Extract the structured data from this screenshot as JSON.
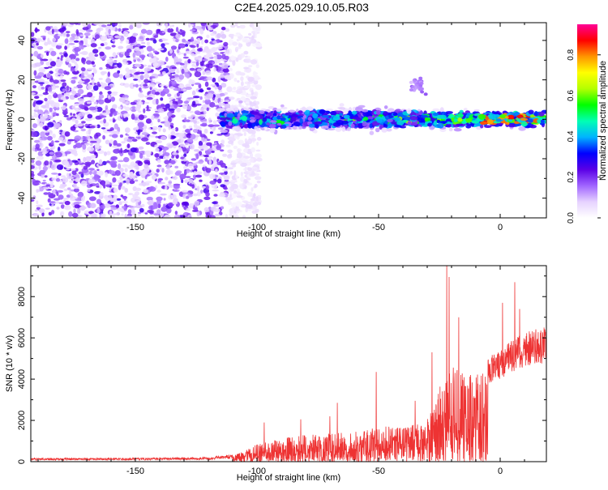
{
  "figure": {
    "title": "C2E4.2025.029.10.05.R03"
  },
  "chart_data": [
    {
      "type": "heatmap",
      "title": "C2E4.2025.029.10.05.R03",
      "xlabel": "Height of straight line (km)",
      "ylabel": "Frequency (Hz)",
      "xlim": [
        -193,
        19
      ],
      "ylim": [
        -50,
        49
      ],
      "xticks": [
        -150,
        -100,
        -50,
        0
      ],
      "yticks": [
        -40,
        -20,
        0,
        20,
        40
      ],
      "features": {
        "noise_region_x": [
          -193,
          -105
        ],
        "signal_band_x": [
          -115,
          19
        ],
        "signal_band_center_freq": 0,
        "signal_band_half_width_hz": 5,
        "secondary_blob": {
          "x": -34,
          "y": 18
        },
        "peak_amplitude_region_x": [
          -10,
          15
        ]
      },
      "colorbar": {
        "label": "Normalized spectral amplitude",
        "range": [
          0.0,
          0.95
        ],
        "ticks": [
          "0.0",
          "0.2",
          "0.4",
          "0.6",
          "0.8"
        ],
        "colors": [
          "#ffffff",
          "#e6d2ff",
          "#a064ff",
          "#5a00e6",
          "#0000ff",
          "#00b4ff",
          "#00ffb4",
          "#00ff00",
          "#b4ff00",
          "#ffff00",
          "#ff9600",
          "#ff0000",
          "#ff0096"
        ]
      }
    },
    {
      "type": "line",
      "xlabel": "Height of straight line (km)",
      "ylabel": "SNR (10 * v/v)",
      "xlim": [
        -193,
        19
      ],
      "ylim": [
        0,
        9500
      ],
      "xticks": [
        -150,
        -100,
        -50,
        0
      ],
      "yticks": [
        0,
        2000,
        4000,
        6000,
        8000
      ],
      "color": "#ee3333",
      "envelope": {
        "x": [
          -193,
          -150,
          -120,
          -110,
          -100,
          -90,
          -80,
          -70,
          -60,
          -50,
          -40,
          -30,
          -25,
          -22,
          -20,
          -15,
          -10,
          -5,
          0,
          5,
          10,
          15,
          19
        ],
        "y": [
          120,
          130,
          150,
          250,
          800,
          1100,
          1250,
          1300,
          1400,
          1650,
          1600,
          2000,
          3400,
          4200,
          4400,
          4100,
          4000,
          4500,
          4900,
          5300,
          5600,
          5800,
          5800
        ]
      },
      "spikes": [
        {
          "x": -104,
          "y": 500
        },
        {
          "x": -97,
          "y": 1900
        },
        {
          "x": -82,
          "y": 2050
        },
        {
          "x": -70,
          "y": 2200
        },
        {
          "x": -67,
          "y": 2850
        },
        {
          "x": -51,
          "y": 4350
        },
        {
          "x": -35,
          "y": 2950
        },
        {
          "x": -28,
          "y": 5300
        },
        {
          "x": -22,
          "y": 9500
        },
        {
          "x": -21,
          "y": 8950
        },
        {
          "x": -17,
          "y": 7000
        },
        {
          "x": 1,
          "y": 7700
        },
        {
          "x": 6,
          "y": 8700
        },
        {
          "x": 8,
          "y": 7400
        },
        {
          "x": 18,
          "y": 6500
        }
      ]
    }
  ]
}
